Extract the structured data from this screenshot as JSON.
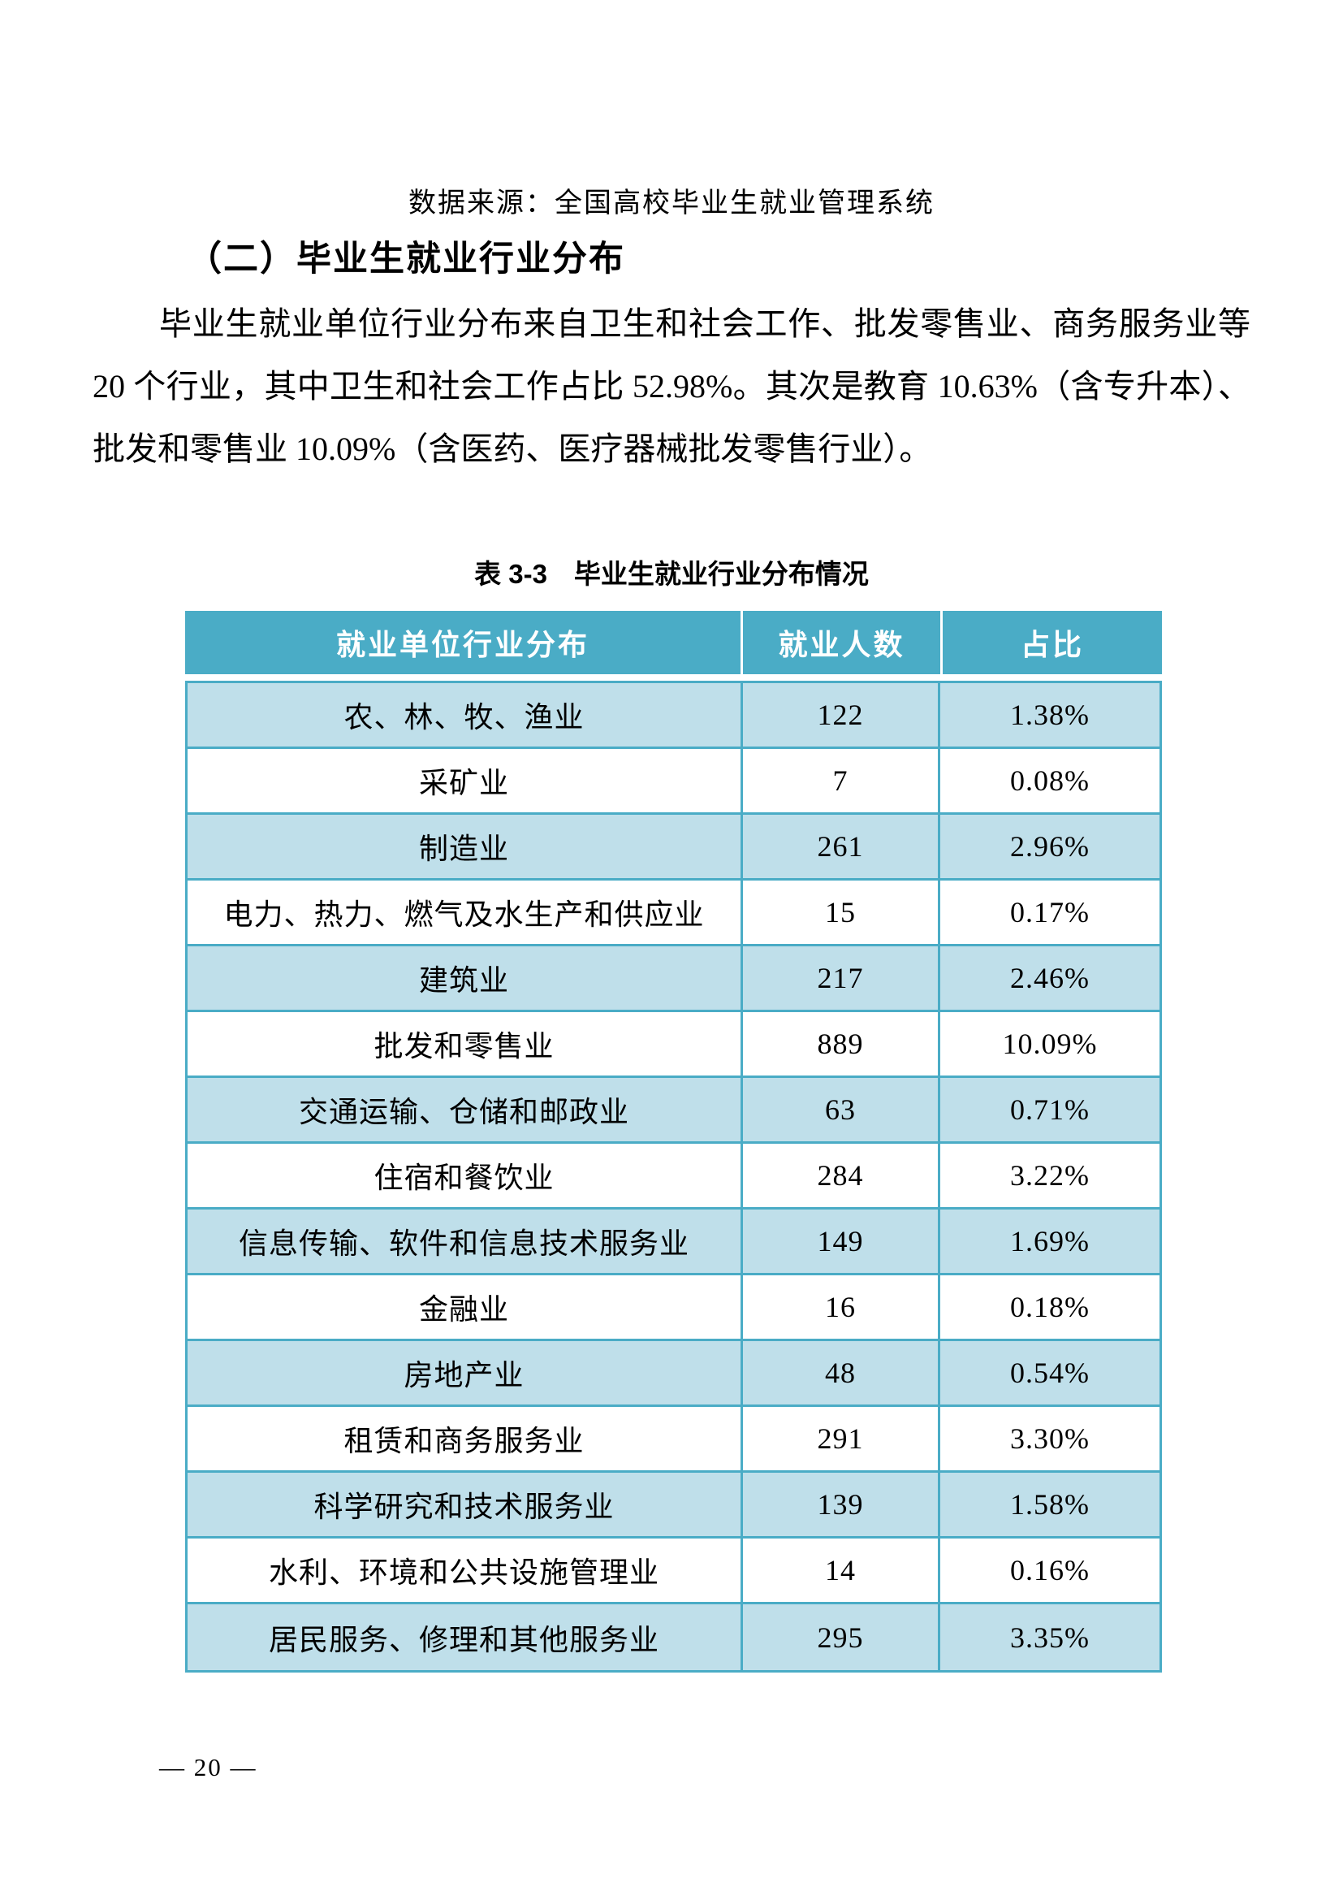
{
  "page": {
    "source_note": "数据来源：全国高校毕业生就业管理系统",
    "section_heading": "（二）毕业生就业行业分布",
    "paragraph": "毕业生就业单位行业分布来自卫生和社会工作、批发零售业、商务服务业等 20 个行业，其中卫生和社会工作占比 52.98%。其次是教育 10.63%（含专升本）、批发和零售业 10.09%（含医药、医疗器械批发零售行业）。",
    "page_number": "— 20 —"
  },
  "table": {
    "caption": "表 3-3　毕业生就业行业分布情况",
    "columns": [
      "就业单位行业分布",
      "就业人数",
      "占比"
    ],
    "rows": [
      {
        "industry": "农、林、牧、渔业",
        "count": "122",
        "share": "1.38%"
      },
      {
        "industry": "采矿业",
        "count": "7",
        "share": "0.08%"
      },
      {
        "industry": "制造业",
        "count": "261",
        "share": "2.96%"
      },
      {
        "industry": "电力、热力、燃气及水生产和供应业",
        "count": "15",
        "share": "0.17%"
      },
      {
        "industry": "建筑业",
        "count": "217",
        "share": "2.46%"
      },
      {
        "industry": "批发和零售业",
        "count": "889",
        "share": "10.09%"
      },
      {
        "industry": "交通运输、仓储和邮政业",
        "count": "63",
        "share": "0.71%"
      },
      {
        "industry": "住宿和餐饮业",
        "count": "284",
        "share": "3.22%"
      },
      {
        "industry": "信息传输、软件和信息技术服务业",
        "count": "149",
        "share": "1.69%"
      },
      {
        "industry": "金融业",
        "count": "16",
        "share": "0.18%"
      },
      {
        "industry": "房地产业",
        "count": "48",
        "share": "0.54%"
      },
      {
        "industry": "租赁和商务服务业",
        "count": "291",
        "share": "3.30%"
      },
      {
        "industry": "科学研究和技术服务业",
        "count": "139",
        "share": "1.58%"
      },
      {
        "industry": "水利、环境和公共设施管理业",
        "count": "14",
        "share": "0.16%"
      },
      {
        "industry": "居民服务、修理和其他服务业",
        "count": "295",
        "share": "3.35%"
      }
    ],
    "colors": {
      "header_bg": "#4AACC6",
      "header_text": "#FFFFFF",
      "row_alt_bg": "#BFDFEA",
      "row_bg": "#FFFFFF",
      "border": "#4AACC6"
    }
  }
}
